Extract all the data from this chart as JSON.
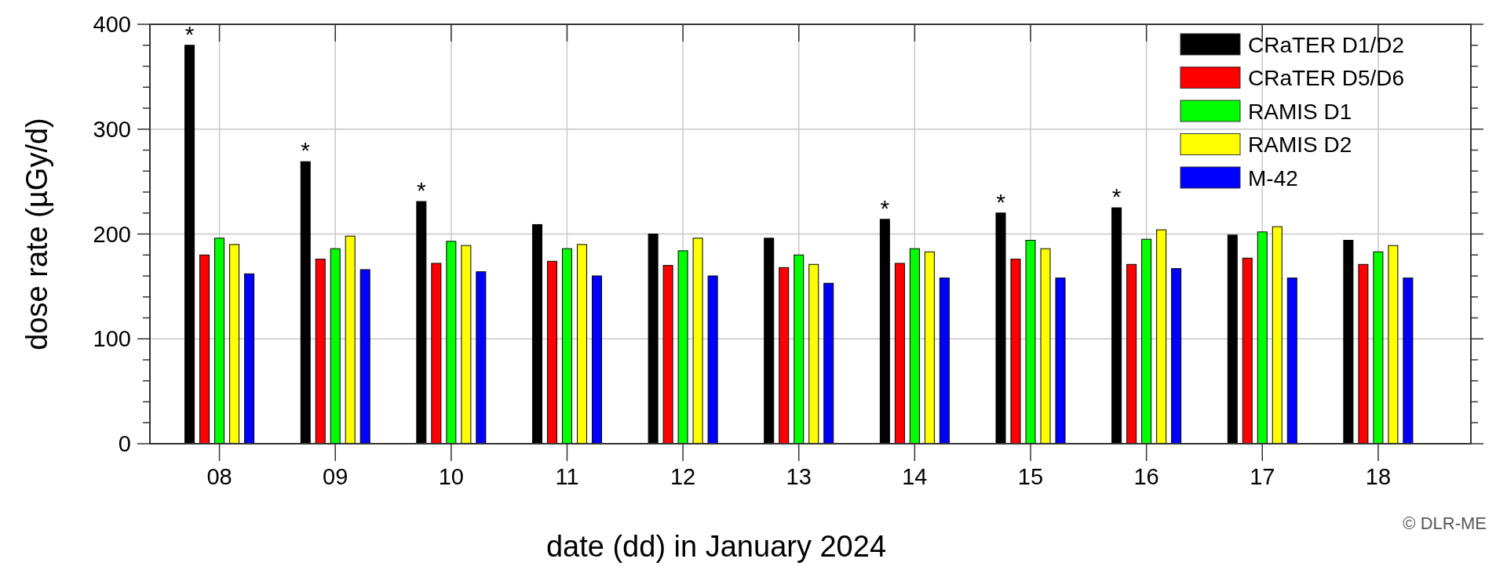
{
  "chart_data": {
    "type": "bar",
    "xlabel": "date (dd) in January 2024",
    "ylabel": "dose rate (µGy/d)",
    "categories": [
      "08",
      "09",
      "10",
      "11",
      "12",
      "13",
      "14",
      "15",
      "16",
      "17",
      "18"
    ],
    "series": [
      {
        "name": "CRaTER D1/D2",
        "color": "#000000",
        "values": [
          380,
          269,
          231,
          209,
          200,
          196,
          214,
          220,
          225,
          199,
          194
        ],
        "value_labels": [
          "*",
          "*",
          "*",
          null,
          null,
          null,
          "*",
          "*",
          "*",
          null,
          null
        ]
      },
      {
        "name": "CRaTER D5/D6",
        "color": "#ff0000",
        "values": [
          180,
          176,
          172,
          174,
          170,
          168,
          172,
          176,
          171,
          177,
          171
        ]
      },
      {
        "name": "RAMIS D1",
        "color": "#00ff00",
        "values": [
          196,
          186,
          193,
          186,
          184,
          180,
          186,
          194,
          195,
          202,
          183
        ]
      },
      {
        "name": "RAMIS D2",
        "color": "#ffff00",
        "values": [
          190,
          198,
          189,
          190,
          196,
          171,
          183,
          186,
          204,
          207,
          189
        ]
      },
      {
        "name": "M-42",
        "color": "#0000ff",
        "values": [
          162,
          166,
          164,
          160,
          160,
          153,
          158,
          158,
          167,
          158,
          158
        ]
      }
    ],
    "ylim": [
      0,
      400
    ],
    "yticks": [
      0,
      {
        "value": 20,
        "label": null
      },
      {
        "value": 40,
        "label": null
      },
      {
        "value": 60,
        "label": null
      },
      {
        "value": 80,
        "label": null
      },
      100,
      {
        "value": 120,
        "label": null
      },
      {
        "value": 140,
        "label": null
      },
      {
        "value": 160,
        "label": null
      },
      {
        "value": 180,
        "label": null
      },
      200,
      {
        "value": 220,
        "label": null
      },
      {
        "value": 240,
        "label": null
      },
      {
        "value": 260,
        "label": null
      },
      {
        "value": 280,
        "label": null
      },
      300,
      {
        "value": 320,
        "label": null
      },
      {
        "value": 340,
        "label": null
      },
      {
        "value": 360,
        "label": null
      },
      {
        "value": 380,
        "label": null
      },
      400
    ],
    "grid": true,
    "legend": "top right",
    "annotations": [
      "© DLR-ME"
    ]
  }
}
